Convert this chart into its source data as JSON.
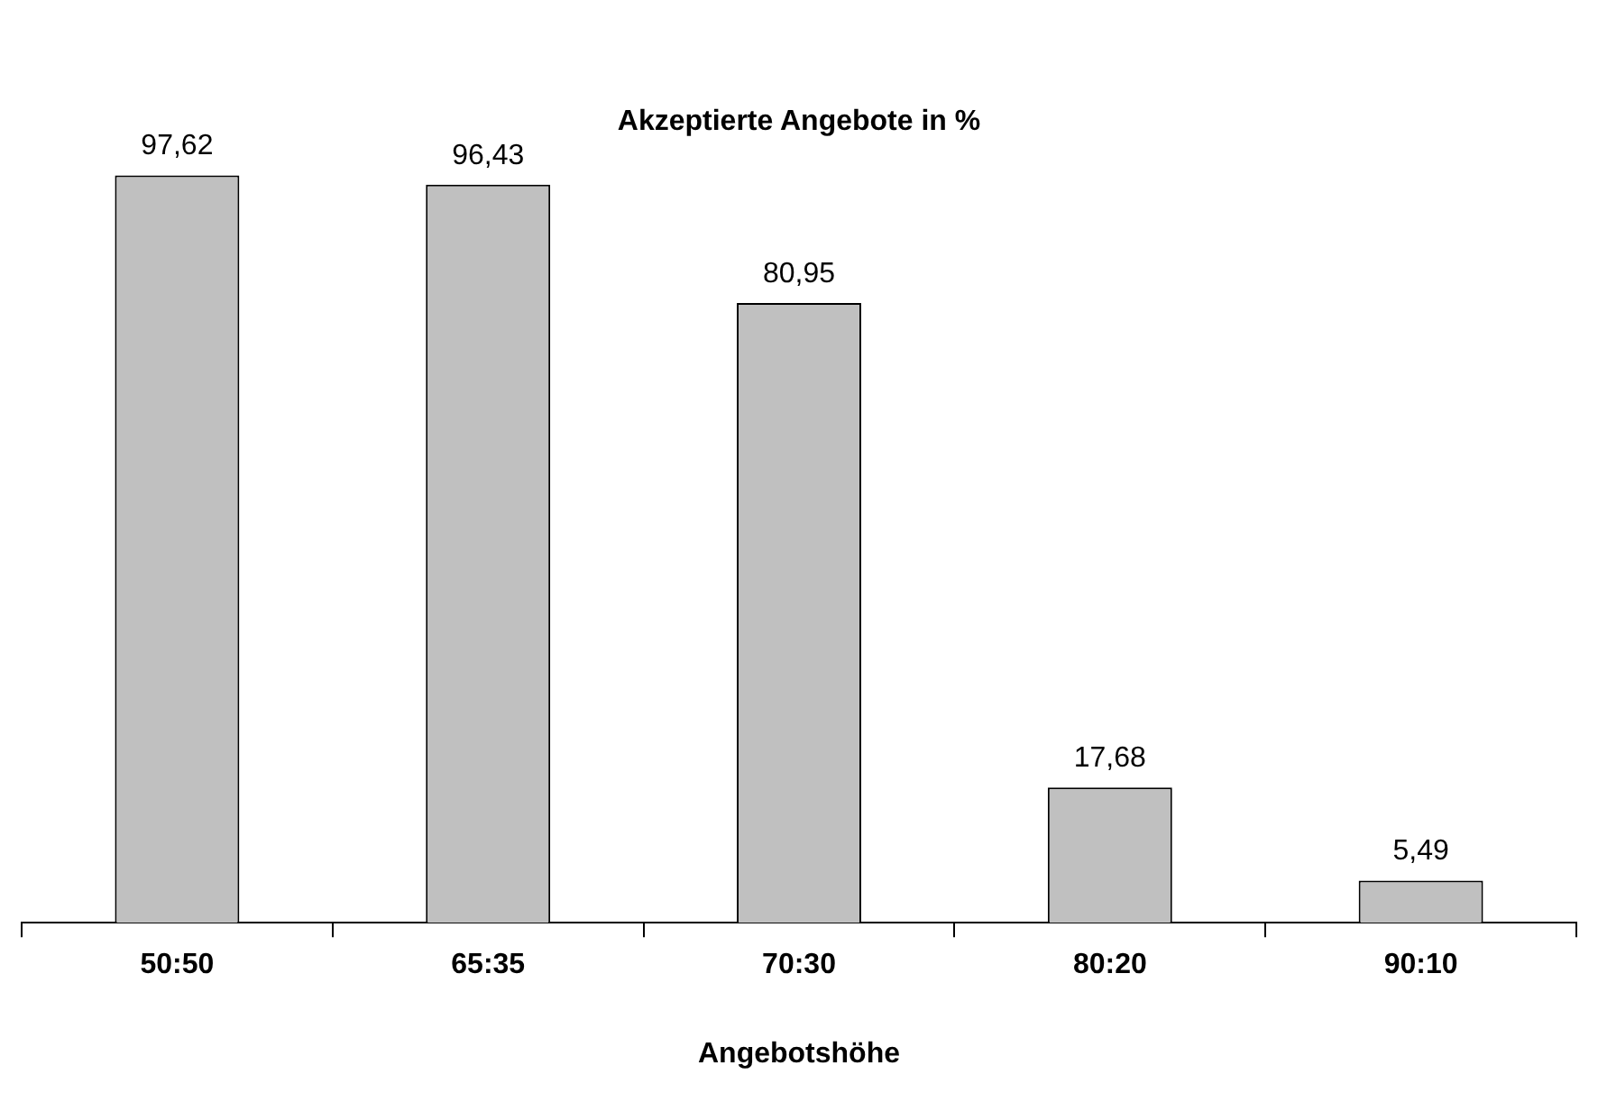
{
  "chart_data": {
    "type": "bar",
    "title": "Akzeptierte Angebote in %",
    "xlabel": "Angebotshöhe",
    "categories": [
      "50:50",
      "65:35",
      "70:30",
      "80:20",
      "90:10"
    ],
    "values": [
      97.62,
      96.43,
      80.95,
      17.68,
      5.49
    ],
    "value_labels": [
      "97,62",
      "96,43",
      "80,95",
      "17,68",
      "5,49"
    ],
    "color": "#c0c0c0"
  }
}
